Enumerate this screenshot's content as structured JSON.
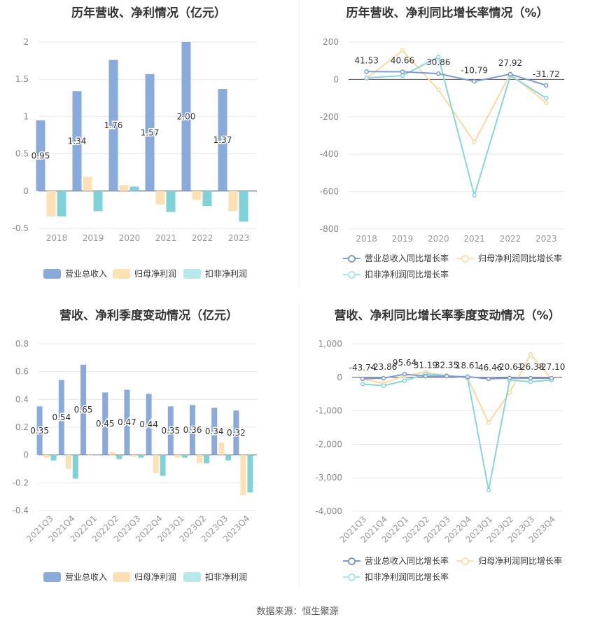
{
  "source": "数据来源：恒生聚源",
  "colors": {
    "rev": "#8aaadc",
    "net": "#fde0b3",
    "ded": "#7fd3d8",
    "revLine": "#7b9cd1",
    "netLine": "#fbd9a0",
    "dedLine": "#86d6da"
  },
  "chart_data": [
    {
      "type": "bar",
      "title": "历年营收、净利情况（亿元）",
      "categories": [
        "2018",
        "2019",
        "2020",
        "2021",
        "2022",
        "2023"
      ],
      "ylim": [
        -0.5,
        2
      ],
      "yticks": [
        "2",
        "1.5",
        "1",
        "0.5",
        "0",
        "-0.5"
      ],
      "series": [
        {
          "name": "营业总收入",
          "values": [
            0.95,
            1.34,
            1.76,
            1.57,
            2.0,
            1.37
          ],
          "labels": [
            "0.95",
            "1.34",
            "1.76",
            "1.57",
            "2.00",
            "1.37"
          ]
        },
        {
          "name": "归母净利润",
          "values": [
            -0.34,
            0.19,
            0.08,
            -0.18,
            -0.12,
            -0.27
          ]
        },
        {
          "name": "扣非净利润",
          "values": [
            -0.34,
            -0.27,
            0.06,
            -0.28,
            -0.2,
            -0.41
          ]
        }
      ]
    },
    {
      "type": "line",
      "title": "历年营收、净利同比增长率情况（%）",
      "categories": [
        "2018",
        "2019",
        "2020",
        "2021",
        "2022",
        "2023"
      ],
      "ylim": [
        -800,
        200
      ],
      "yticks": [
        "200",
        "0",
        "-200",
        "-400",
        "-600",
        "-800"
      ],
      "series": [
        {
          "name": "营业总收入同比增长率",
          "values": [
            41.53,
            40.66,
            30.86,
            -10.79,
            27.92,
            -31.72
          ],
          "labels": [
            "41.53",
            "40.66",
            "30.86",
            "-10.79",
            "27.92",
            "-31.72"
          ]
        },
        {
          "name": "归母净利润同比增长率",
          "values": [
            5,
            155,
            -55,
            -335,
            30,
            -125
          ]
        },
        {
          "name": "扣非净利润同比增长率",
          "values": [
            8,
            20,
            120,
            -620,
            20,
            -100
          ]
        }
      ]
    },
    {
      "type": "bar",
      "title": "营收、净利季度变动情况（亿元）",
      "categories": [
        "2021Q3",
        "2021Q4",
        "2022Q1",
        "2022Q2",
        "2022Q3",
        "2022Q4",
        "2023Q1",
        "2023Q2",
        "2023Q3",
        "2023Q4"
      ],
      "ylim": [
        -0.4,
        0.8
      ],
      "yticks": [
        "0.8",
        "0.6",
        "0.4",
        "0.2",
        "0",
        "-0.2",
        "-0.4"
      ],
      "series": [
        {
          "name": "营业总收入",
          "values": [
            0.35,
            0.54,
            0.65,
            0.45,
            0.47,
            0.44,
            0.35,
            0.36,
            0.34,
            0.32
          ],
          "labels": [
            "0.35",
            "0.54",
            "0.65",
            "0.45",
            "0.47",
            "0.44",
            "0.35",
            "0.36",
            "0.34",
            "0.32"
          ]
        },
        {
          "name": "归母净利润",
          "values": [
            -0.02,
            -0.1,
            0.0,
            0.02,
            -0.01,
            -0.13,
            -0.02,
            -0.06,
            0.09,
            -0.29
          ]
        },
        {
          "name": "扣非净利润",
          "values": [
            -0.04,
            -0.17,
            0.0,
            -0.03,
            -0.02,
            -0.15,
            -0.02,
            -0.06,
            -0.04,
            -0.27
          ]
        }
      ]
    },
    {
      "type": "line",
      "title": "营收、净利同比增长率季度变动情况（%）",
      "categories": [
        "2021Q3",
        "2021Q4",
        "2022Q1",
        "2022Q2",
        "2022Q3",
        "2022Q4",
        "2023Q1",
        "2023Q2",
        "2023Q3",
        "2023Q4"
      ],
      "ylim": [
        -4000,
        1000
      ],
      "yticks": [
        "1,000",
        "0",
        "-1,000",
        "-2,000",
        "-3,000",
        "-4,000"
      ],
      "series": [
        {
          "name": "营业总收入同比增长率",
          "values": [
            -43.74,
            -23.86,
            95.64,
            31.19,
            32.35,
            18.61,
            -46.46,
            -20.61,
            -26.38,
            -27.1
          ],
          "labels": [
            "-43.74",
            "-23.86",
            "95.64",
            "31.19",
            "32.35",
            "18.61",
            "-46.46",
            "-20.61",
            "-26.38",
            "-27.10"
          ]
        },
        {
          "name": "归母净利润同比增长率",
          "values": [
            -50,
            -180,
            50,
            150,
            60,
            -20,
            -1350,
            -450,
            680,
            -50
          ]
        },
        {
          "name": "扣非净利润同比增长率",
          "values": [
            -200,
            -250,
            -100,
            100,
            50,
            -10,
            -3370,
            -80,
            -130,
            -80
          ]
        }
      ]
    }
  ]
}
